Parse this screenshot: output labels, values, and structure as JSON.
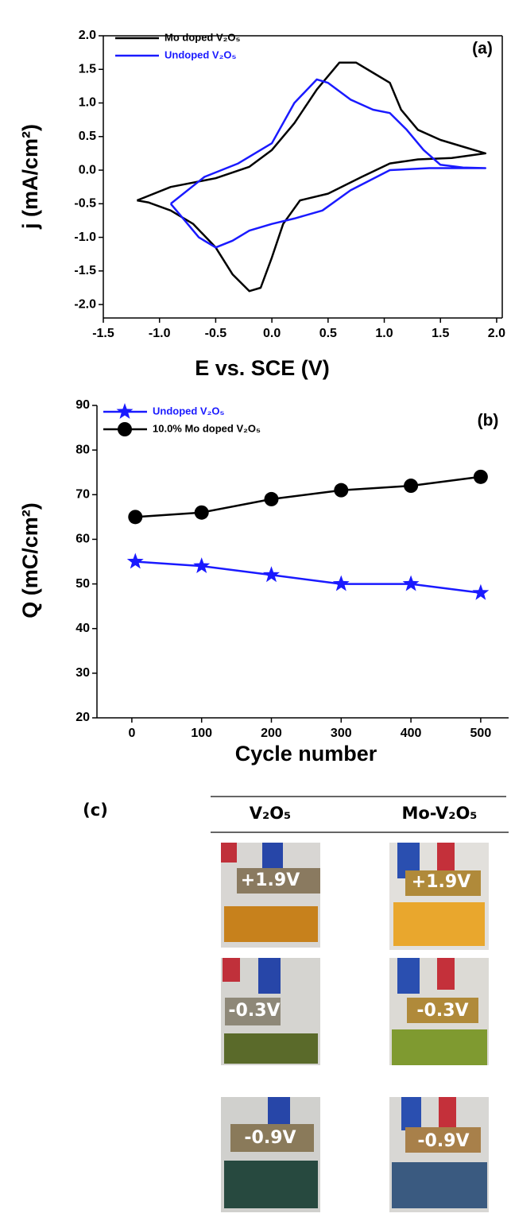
{
  "chart_data": [
    {
      "type": "line",
      "xlabel": "E vs. SCE (V)",
      "ylabel": "j (mA/cm²)",
      "annotation": "(a)",
      "legend": "upper left",
      "xlim": [
        -1.5,
        2.05
      ],
      "ylim": [
        -2.2,
        2.0
      ],
      "xticks": [
        -1.5,
        {
          "value": -1,
          "label": "-1.0"
        },
        -0.5,
        {
          "value": 0,
          "label": "0.0"
        },
        0.5,
        {
          "value": 1,
          "label": "1.0"
        },
        1.5,
        {
          "value": 2,
          "label": "2.0"
        }
      ],
      "yticks": [
        {
          "value": -2,
          "label": "-2.0"
        },
        -1.5,
        {
          "value": -1,
          "label": "-1.0"
        },
        -0.5,
        {
          "value": 0,
          "label": "0.0"
        },
        0.5,
        {
          "value": 1,
          "label": "1.0"
        },
        1.5,
        {
          "value": 2,
          "label": "2.0"
        }
      ],
      "series": [
        {
          "name": "Mo doped V₂O₅",
          "color": "#000000",
          "x": [
            -1.2,
            -0.9,
            -0.5,
            -0.2,
            0,
            0.2,
            0.4,
            0.6,
            0.75,
            0.9,
            1.05,
            1.15,
            1.3,
            1.5,
            1.7,
            1.9,
            1.6,
            1.3,
            1.05,
            0.8,
            0.5,
            0.25,
            0.1,
            0,
            -0.1,
            -0.2,
            -0.35,
            -0.5,
            -0.7,
            -0.9,
            -1.1,
            -1.2
          ],
          "values": [
            -0.45,
            -0.25,
            -0.12,
            0.05,
            0.3,
            0.7,
            1.2,
            1.6,
            1.6,
            1.45,
            1.3,
            0.9,
            0.6,
            0.45,
            0.35,
            0.25,
            0.18,
            0.16,
            0.1,
            -0.1,
            -0.35,
            -0.45,
            -0.8,
            -1.3,
            -1.75,
            -1.8,
            -1.55,
            -1.15,
            -0.8,
            -0.6,
            -0.48,
            -0.45
          ]
        },
        {
          "name": "Undoped V₂O₅",
          "color": "#1a1aff",
          "x": [
            -0.9,
            -0.6,
            -0.3,
            0,
            0.2,
            0.4,
            0.5,
            0.7,
            0.9,
            1.05,
            1.2,
            1.35,
            1.5,
            1.7,
            1.9,
            1.4,
            1.05,
            0.7,
            0.45,
            0.2,
            0,
            -0.2,
            -0.35,
            -0.5,
            -0.65,
            -0.8,
            -0.9
          ],
          "values": [
            -0.5,
            -0.1,
            0.1,
            0.4,
            1.0,
            1.35,
            1.3,
            1.05,
            0.9,
            0.85,
            0.6,
            0.3,
            0.08,
            0.04,
            0.03,
            0.03,
            0,
            -0.3,
            -0.6,
            -0.72,
            -0.8,
            -0.9,
            -1.05,
            -1.15,
            -1.0,
            -0.7,
            -0.5
          ]
        }
      ]
    },
    {
      "type": "line",
      "xlabel": "Cycle number",
      "ylabel": "Q (mC/cm²)",
      "annotation": "(b)",
      "legend": "upper left",
      "xlim": [
        -50,
        540
      ],
      "ylim": [
        20,
        90
      ],
      "xticks": [
        0,
        100,
        200,
        300,
        400,
        500
      ],
      "yticks": [
        20,
        30,
        40,
        50,
        60,
        70,
        80,
        90
      ],
      "x": [
        5,
        100,
        200,
        300,
        400,
        500
      ],
      "series": [
        {
          "name": "Undoped V₂O₅",
          "color": "#1a1aff",
          "marker": "star",
          "values": [
            55,
            54,
            52,
            50,
            50,
            48
          ]
        },
        {
          "name": "10.0% Mo doped V₂O₅",
          "color": "#000000",
          "marker": "circle",
          "values": [
            65,
            66,
            69,
            71,
            72,
            74
          ]
        }
      ]
    }
  ],
  "panel_c": {
    "label": "(c)",
    "columns": [
      "V₂O₅",
      "Mo-V₂O₅"
    ],
    "rows": [
      [
        "+1.9V",
        "+1.9V"
      ],
      [
        "-0.3V",
        "-0.3V"
      ],
      [
        "-0.9V",
        "-0.9V"
      ]
    ]
  }
}
